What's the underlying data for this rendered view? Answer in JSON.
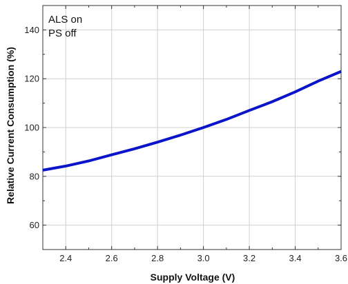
{
  "chart_data": {
    "type": "line",
    "xlabel": "Supply Voltage (V)",
    "ylabel": "Relative Current Consumption (%)",
    "xlim": [
      2.3,
      3.6
    ],
    "ylim": [
      50,
      150
    ],
    "x_ticks": [
      2.4,
      2.6,
      2.8,
      3.0,
      3.2,
      3.4,
      3.6
    ],
    "x_tick_labels": [
      "2.4",
      "2.6",
      "2.8",
      "3.0",
      "3.2",
      "3.4",
      "3.6"
    ],
    "y_ticks": [
      60,
      80,
      100,
      120,
      140
    ],
    "y_tick_labels": [
      "60",
      "80",
      "100",
      "120",
      "140"
    ],
    "grid": true,
    "annotation": [
      "ALS on",
      "PS off"
    ],
    "series": [
      {
        "color": "#0a14c8",
        "x": [
          2.3,
          2.4,
          2.5,
          2.6,
          2.7,
          2.8,
          2.9,
          3.0,
          3.1,
          3.2,
          3.3,
          3.4,
          3.5,
          3.6
        ],
        "y": [
          82.5,
          84.2,
          86.3,
          88.8,
          91.3,
          94.0,
          96.9,
          100.0,
          103.3,
          107.0,
          110.6,
          114.6,
          119.0,
          123.0
        ]
      }
    ]
  }
}
